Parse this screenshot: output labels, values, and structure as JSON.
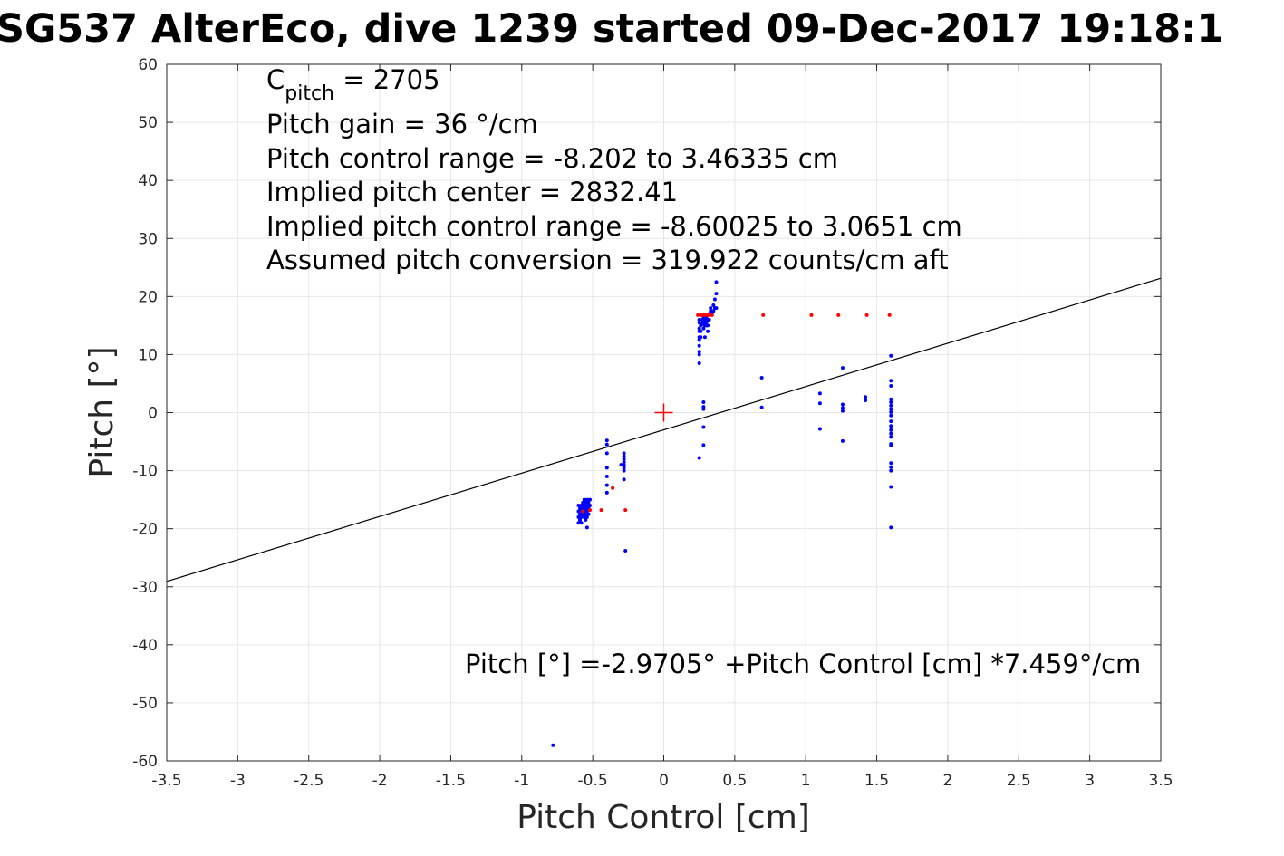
{
  "chart_data": {
    "type": "scatter",
    "title": "SG537 AlterEco, dive 1239 started 09-Dec-2017 19:18:1",
    "xlabel": "Pitch Control [cm]",
    "ylabel": "Pitch [°]",
    "xlim": [
      -3.5,
      3.5
    ],
    "ylim": [
      -60,
      60
    ],
    "xticks": [
      -3.5,
      -3,
      -2.5,
      -2,
      -1.5,
      -1,
      -0.5,
      0,
      0.5,
      1,
      1.5,
      2,
      2.5,
      3,
      3.5
    ],
    "yticks": [
      -60,
      -50,
      -40,
      -30,
      -20,
      -10,
      0,
      10,
      20,
      30,
      40,
      50,
      60
    ],
    "grid": true,
    "colors": {
      "points": "#0000ff",
      "excluded": "#ff0000",
      "fit": "#000000",
      "center": "#ff0000",
      "grid": "#e6e6e6"
    },
    "annotations": {
      "c_pitch_symbol": "C",
      "c_pitch_subscript": "pitch",
      "c_pitch_value": " = 2705",
      "pitch_gain": "Pitch gain = 36 °/cm",
      "control_range": "Pitch control range = -8.202 to 3.46335 cm",
      "implied_center": "Implied pitch center = 2832.41",
      "implied_range": "Implied pitch control range = -8.60025 to 3.0651 cm",
      "conversion": "Assumed pitch conversion = 319.922 counts/cm aft",
      "fit_equation": "Pitch [°] =-2.9705° +Pitch Control [cm] *7.459°/cm"
    },
    "series": [
      {
        "name": "",
        "color": "#0000ff",
        "points": [
          [
            -0.6,
            -16
          ],
          [
            -0.6,
            -17
          ],
          [
            -0.6,
            -18
          ],
          [
            -0.6,
            -19
          ],
          [
            -0.59,
            -16.5
          ],
          [
            -0.59,
            -17.5
          ],
          [
            -0.59,
            -18.5
          ],
          [
            -0.58,
            -16
          ],
          [
            -0.58,
            -17
          ],
          [
            -0.58,
            -18
          ],
          [
            -0.58,
            -19
          ],
          [
            -0.57,
            -15.5
          ],
          [
            -0.57,
            -16.5
          ],
          [
            -0.57,
            -17.5
          ],
          [
            -0.56,
            -15
          ],
          [
            -0.56,
            -16
          ],
          [
            -0.56,
            -17
          ],
          [
            -0.56,
            -18
          ],
          [
            -0.55,
            -15.5
          ],
          [
            -0.55,
            -16.5
          ],
          [
            -0.55,
            -17.5
          ],
          [
            -0.55,
            -18.5
          ],
          [
            -0.54,
            -15
          ],
          [
            -0.54,
            -16
          ],
          [
            -0.54,
            -17
          ],
          [
            -0.54,
            -18
          ],
          [
            -0.54,
            -19.8
          ],
          [
            -0.53,
            -15.5
          ],
          [
            -0.53,
            -16.5
          ],
          [
            -0.53,
            -17.5
          ],
          [
            -0.52,
            -15
          ],
          [
            -0.52,
            -16
          ],
          [
            -0.4,
            -4.8
          ],
          [
            -0.4,
            -5.5
          ],
          [
            -0.4,
            -7
          ],
          [
            -0.4,
            -9.5
          ],
          [
            -0.4,
            -11
          ],
          [
            -0.4,
            -12.5
          ],
          [
            -0.4,
            -13.8
          ],
          [
            -0.28,
            -7
          ],
          [
            -0.28,
            -7.5
          ],
          [
            -0.28,
            -8
          ],
          [
            -0.28,
            -8.5
          ],
          [
            -0.28,
            -9
          ],
          [
            -0.28,
            -9.5
          ],
          [
            -0.28,
            -10
          ],
          [
            -0.28,
            -11.5
          ],
          [
            -0.3,
            -9
          ],
          [
            -0.27,
            -23.8
          ],
          [
            0.25,
            8.5
          ],
          [
            0.25,
            10
          ],
          [
            0.25,
            10.5
          ],
          [
            0.25,
            11.5
          ],
          [
            0.25,
            12.5
          ],
          [
            0.25,
            13
          ],
          [
            0.25,
            14
          ],
          [
            0.25,
            14.5
          ],
          [
            0.25,
            15.5
          ],
          [
            0.25,
            16
          ],
          [
            0.26,
            13
          ],
          [
            0.26,
            14
          ],
          [
            0.26,
            15
          ],
          [
            0.27,
            15.2
          ],
          [
            0.27,
            16
          ],
          [
            0.28,
            14.5
          ],
          [
            0.28,
            15.5
          ],
          [
            0.28,
            16.5
          ],
          [
            0.29,
            15
          ],
          [
            0.29,
            16
          ],
          [
            0.3,
            15
          ],
          [
            0.3,
            15.5
          ],
          [
            0.3,
            16
          ],
          [
            0.3,
            16.5
          ],
          [
            0.31,
            14
          ],
          [
            0.31,
            15
          ],
          [
            0.31,
            16
          ],
          [
            0.32,
            16
          ],
          [
            0.32,
            17
          ],
          [
            0.33,
            17.5
          ],
          [
            0.33,
            18
          ],
          [
            0.34,
            17
          ],
          [
            0.35,
            17.5
          ],
          [
            0.35,
            18.5
          ],
          [
            0.36,
            18
          ],
          [
            0.36,
            19.5
          ],
          [
            0.37,
            18
          ],
          [
            0.37,
            20.5
          ],
          [
            0.37,
            22.5
          ],
          [
            0.28,
            1.8
          ],
          [
            0.28,
            1
          ],
          [
            0.28,
            0.6
          ],
          [
            0.28,
            -2.5
          ],
          [
            0.28,
            -5.6
          ],
          [
            0.25,
            -7.8
          ],
          [
            0.29,
            13
          ],
          [
            -0.78,
            -57.3
          ],
          [
            0.69,
            6
          ],
          [
            0.69,
            0.9
          ],
          [
            1.1,
            3.3
          ],
          [
            1.1,
            1.6
          ],
          [
            1.1,
            -2.8
          ],
          [
            1.26,
            7.7
          ],
          [
            1.26,
            1.4
          ],
          [
            1.26,
            0.8
          ],
          [
            1.26,
            0.3
          ],
          [
            1.26,
            -4.9
          ],
          [
            1.42,
            2.7
          ],
          [
            1.42,
            2.1
          ],
          [
            1.6,
            9.8
          ],
          [
            1.6,
            5.5
          ],
          [
            1.6,
            4.6
          ],
          [
            1.6,
            2.3
          ],
          [
            1.6,
            1.8
          ],
          [
            1.6,
            1.2
          ],
          [
            1.6,
            0.6
          ],
          [
            1.6,
            0.1
          ],
          [
            1.6,
            -0.5
          ],
          [
            1.6,
            -1.5
          ],
          [
            1.6,
            -2.3
          ],
          [
            1.6,
            -3
          ],
          [
            1.6,
            -3.6
          ],
          [
            1.6,
            -4.2
          ],
          [
            1.6,
            -5.4
          ],
          [
            1.6,
            -5.7
          ],
          [
            1.6,
            -8.7
          ],
          [
            1.6,
            -9.4
          ],
          [
            1.6,
            -10
          ],
          [
            1.6,
            -12.8
          ],
          [
            1.6,
            -19.8
          ]
        ]
      },
      {
        "name": "",
        "color": "#ff0000",
        "points": [
          [
            -0.57,
            -17
          ],
          [
            -0.52,
            -16.8
          ],
          [
            -0.44,
            -16.8
          ],
          [
            -0.36,
            -13
          ],
          [
            -0.27,
            -16.8
          ],
          [
            0.24,
            16.8
          ],
          [
            0.26,
            16.8
          ],
          [
            0.28,
            16.8
          ],
          [
            0.3,
            16.8
          ],
          [
            0.32,
            16.8
          ],
          [
            0.34,
            16.8
          ],
          [
            0.7,
            16.8
          ],
          [
            1.04,
            16.8
          ],
          [
            1.23,
            16.8
          ],
          [
            1.43,
            16.8
          ],
          [
            1.59,
            16.8
          ]
        ]
      }
    ],
    "fit_line": {
      "intercept": -2.9705,
      "slope": 7.459,
      "x_range": [
        -3.5,
        3.5
      ]
    },
    "center_marker": [
      0,
      0
    ]
  }
}
